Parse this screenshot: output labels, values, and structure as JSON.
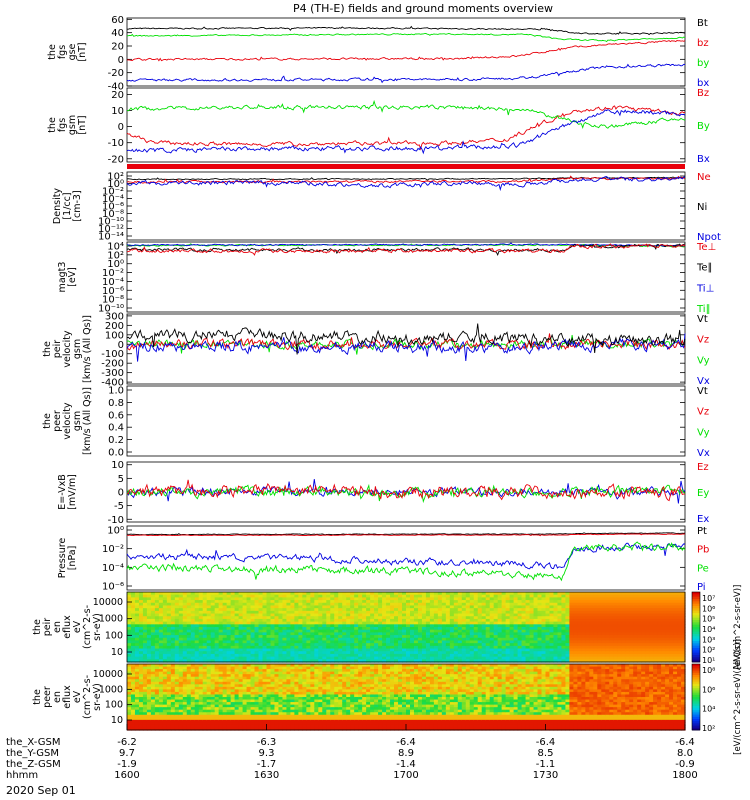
{
  "title": "P4 (TH-E) fields and ground moments overview",
  "date_label": "2020 Sep 01",
  "colors": {
    "black": "#000000",
    "red": "#e8000b",
    "green": "#00e000",
    "blue": "#0000e0"
  },
  "chart_data": [
    {
      "type": "line",
      "id": "fgs-gse",
      "ylabel": [
        "the",
        "fgs",
        "gse",
        "[nT]"
      ],
      "ylim": [
        -40,
        62
      ],
      "ticks": [
        60,
        40,
        20,
        0,
        -20,
        -40
      ],
      "legend": [
        "Bt",
        "bz",
        "by",
        "bx"
      ],
      "series": [
        {
          "name": "Bt",
          "color": "black",
          "levels": [
            [
              0,
              46
            ],
            [
              0.4,
              47
            ],
            [
              0.75,
              45
            ],
            [
              0.8,
              40
            ],
            [
              0.85,
              38
            ],
            [
              1,
              40
            ]
          ],
          "noise": 0.8
        },
        {
          "name": "bz",
          "color": "red",
          "levels": [
            [
              0,
              0
            ],
            [
              0.6,
              1
            ],
            [
              0.7,
              5
            ],
            [
              0.76,
              13
            ],
            [
              0.8,
              18
            ],
            [
              0.86,
              22
            ],
            [
              1,
              28
            ]
          ],
          "noise": 1.2
        },
        {
          "name": "by",
          "color": "green",
          "levels": [
            [
              0,
              35
            ],
            [
              0.55,
              38
            ],
            [
              0.72,
              37
            ],
            [
              0.78,
              30
            ],
            [
              0.85,
              28
            ],
            [
              1,
              33
            ]
          ],
          "noise": 0.8
        },
        {
          "name": "bx",
          "color": "blue",
          "levels": [
            [
              0,
              -31
            ],
            [
              0.6,
              -30
            ],
            [
              0.72,
              -28
            ],
            [
              0.77,
              -20
            ],
            [
              0.85,
              -12
            ],
            [
              1,
              -8
            ]
          ],
          "noise": 1.5
        }
      ]
    },
    {
      "type": "line",
      "id": "fgs-gsm",
      "ylabel": [
        "the",
        "fgs",
        "gsm",
        "[nT]"
      ],
      "ylim": [
        -22,
        24
      ],
      "ticks": [
        20,
        10,
        0,
        -10,
        -20
      ],
      "legend": [
        "Bz",
        "By",
        "Bx"
      ],
      "series": [
        {
          "name": "Bz",
          "color": "red",
          "levels": [
            [
              0,
              -5
            ],
            [
              0.05,
              -10
            ],
            [
              0.2,
              -11
            ],
            [
              0.6,
              -10
            ],
            [
              0.68,
              -8
            ],
            [
              0.73,
              0
            ],
            [
              0.8,
              10
            ],
            [
              0.88,
              12
            ],
            [
              1,
              8
            ]
          ],
          "noise": 1.0
        },
        {
          "name": "By",
          "color": "green",
          "levels": [
            [
              0,
              11
            ],
            [
              0.2,
              12
            ],
            [
              0.6,
              12
            ],
            [
              0.72,
              10
            ],
            [
              0.8,
              3
            ],
            [
              0.86,
              0
            ],
            [
              1,
              5
            ]
          ],
          "noise": 1.0
        },
        {
          "name": "Bx",
          "color": "blue",
          "levels": [
            [
              0,
              -15
            ],
            [
              0.2,
              -14
            ],
            [
              0.6,
              -13
            ],
            [
              0.7,
              -12
            ],
            [
              0.78,
              0
            ],
            [
              0.86,
              10
            ],
            [
              1,
              8
            ]
          ],
          "noise": 1.2
        }
      ]
    },
    {
      "type": "line",
      "id": "density",
      "log": true,
      "ylabel": [
        "Density",
        "[1/cc]",
        "[cm-3]"
      ],
      "ylim": [
        -14,
        2
      ],
      "ticks": [
        "10²",
        "10⁰",
        "10⁻²",
        "10⁻⁴",
        "10⁻⁶",
        "10⁻⁸",
        "10⁻¹⁰",
        "10⁻¹²",
        "10⁻¹⁴"
      ],
      "legend": [
        "Ne",
        "Ni",
        "Npot"
      ],
      "series": [
        {
          "name": "Ni",
          "color": "black",
          "levels": [
            [
              0,
              0.3
            ],
            [
              0.7,
              0.4
            ],
            [
              0.8,
              0.6
            ],
            [
              1,
              0.7
            ]
          ],
          "noise": 0.1
        },
        {
          "name": "Ne",
          "color": "red",
          "levels": [
            [
              0,
              -0.3
            ],
            [
              0.7,
              -0.2
            ],
            [
              0.8,
              0.4
            ],
            [
              1,
              0.5
            ]
          ],
          "noise": 0.2
        },
        {
          "name": "Npot",
          "color": "blue",
          "levels": [
            [
              0,
              -0.6
            ],
            [
              0.3,
              -0.5
            ],
            [
              0.45,
              -1.2
            ],
            [
              0.6,
              -0.6
            ],
            [
              0.7,
              -0.9
            ],
            [
              0.8,
              0.2
            ],
            [
              1,
              0.4
            ]
          ],
          "noise": 0.4
        }
      ]
    },
    {
      "type": "line",
      "id": "moms-temp",
      "log": true,
      "ylabel": [
        "magt3",
        "[eV]"
      ],
      "ylim": [
        -10,
        4
      ],
      "ticks": [
        "10⁴",
        "10²",
        "10⁰",
        "10⁻²",
        "10⁻⁴",
        "10⁻⁶",
        "10⁻⁸",
        "10⁻¹⁰"
      ],
      "legend": [
        "Te⊥",
        "Te∥",
        "Ti⊥",
        "Ti∥"
      ],
      "series": [
        {
          "name": "Ti∥",
          "color": "green",
          "levels": [
            [
              0,
              3.3
            ],
            [
              0.8,
              3.4
            ],
            [
              1,
              3.1
            ]
          ],
          "noise": 0.1
        },
        {
          "name": "Ti⊥",
          "color": "blue",
          "levels": [
            [
              0,
              3.4
            ],
            [
              0.8,
              3.5
            ],
            [
              1,
              3.2
            ]
          ],
          "noise": 0.1
        },
        {
          "name": "Te∥",
          "color": "black",
          "levels": [
            [
              0,
              2.5
            ],
            [
              0.78,
              2.4
            ],
            [
              0.8,
              3.2
            ],
            [
              1,
              3.3
            ]
          ],
          "noise": 0.25
        },
        {
          "name": "Te⊥",
          "color": "red",
          "levels": [
            [
              0,
              2.3
            ],
            [
              0.78,
              2.2
            ],
            [
              0.8,
              3.1
            ],
            [
              1,
              3.2
            ]
          ],
          "noise": 0.3
        }
      ]
    },
    {
      "type": "line",
      "id": "peir-velocity",
      "ylabel": [
        "the",
        "peir",
        "velocity",
        "gsm",
        "[km/s (All Qs)]"
      ],
      "ylim": [
        -420,
        320
      ],
      "ticks": [
        300,
        200,
        100,
        0,
        -100,
        -200,
        -300,
        -400
      ],
      "legend": [
        "Vt",
        "Vz",
        "Vy",
        "Vx"
      ],
      "series": [
        {
          "name": "Vy",
          "color": "green",
          "levels": [
            [
              0,
              0
            ],
            [
              1,
              0
            ]
          ],
          "noise": 35
        },
        {
          "name": "Vz",
          "color": "red",
          "levels": [
            [
              0,
              0
            ],
            [
              1,
              0
            ]
          ],
          "noise": 40
        },
        {
          "name": "Vx",
          "color": "blue",
          "levels": [
            [
              0,
              -20
            ],
            [
              0.7,
              -40
            ],
            [
              0.8,
              -10
            ],
            [
              1,
              0
            ]
          ],
          "noise": 45
        },
        {
          "name": "Vt",
          "color": "black",
          "levels": [
            [
              0,
              80
            ],
            [
              0.2,
              110
            ],
            [
              0.5,
              70
            ],
            [
              0.8,
              60
            ],
            [
              1,
              40
            ]
          ],
          "noise": 50
        }
      ]
    },
    {
      "type": "empty",
      "id": "peer-velocity",
      "ylabel": [
        "the",
        "peer",
        "velocity",
        "gsm",
        "[km/s (All Qs)]"
      ],
      "ylim": [
        0,
        1
      ],
      "ticks": [
        "1.0",
        "0.8",
        "0.6",
        "0.4",
        "0.2",
        "0.0"
      ],
      "legend": [
        "Vt",
        "Vz",
        "Vy",
        "Vx"
      ]
    },
    {
      "type": "line",
      "id": "efield",
      "ylabel": [
        "E=-VxB",
        "[mV/m]"
      ],
      "ylim": [
        -11,
        11
      ],
      "ticks": [
        10,
        5,
        0,
        -5,
        -10
      ],
      "legend": [
        "Ez",
        "Ey",
        "Ex"
      ],
      "series": [
        {
          "name": "Ex",
          "color": "blue",
          "levels": [
            [
              0,
              0
            ],
            [
              1,
              0
            ]
          ],
          "noise": 1.2
        },
        {
          "name": "Ey",
          "color": "green",
          "levels": [
            [
              0,
              0
            ],
            [
              1,
              0
            ]
          ],
          "noise": 1.4
        },
        {
          "name": "Ez",
          "color": "red",
          "levels": [
            [
              0,
              0
            ],
            [
              0.4,
              1
            ],
            [
              0.5,
              0
            ],
            [
              1,
              0
            ]
          ],
          "noise": 1.8
        }
      ]
    },
    {
      "type": "line",
      "id": "pressure",
      "log": true,
      "ylabel": [
        "Pressure",
        "[nPa]"
      ],
      "ylim": [
        -6,
        1.2
      ],
      "ticks": [
        "10⁰",
        "10⁻²",
        "10⁻⁴",
        "10⁻⁶"
      ],
      "legend": [
        "Pt",
        "Pb",
        "Pe",
        "Pi"
      ],
      "series": [
        {
          "name": "Pt",
          "color": "black",
          "levels": [
            [
              0,
              0.25
            ],
            [
              0.78,
              0.3
            ],
            [
              0.82,
              0.35
            ],
            [
              1,
              0.4
            ]
          ],
          "noise": 0.03
        },
        {
          "name": "Pb",
          "color": "red",
          "levels": [
            [
              0,
              0.15
            ],
            [
              0.78,
              0.2
            ],
            [
              0.82,
              0.25
            ],
            [
              1,
              0.3
            ]
          ],
          "noise": 0.03
        },
        {
          "name": "Pi",
          "color": "blue",
          "levels": [
            [
              0,
              -2.2
            ],
            [
              0.3,
              -2.4
            ],
            [
              0.5,
              -2.8
            ],
            [
              0.7,
              -3.0
            ],
            [
              0.78,
              -3.4
            ],
            [
              0.8,
              -1.3
            ],
            [
              1,
              -1.0
            ]
          ],
          "noise": 0.3
        },
        {
          "name": "Pe",
          "color": "green",
          "levels": [
            [
              0,
              -3.5
            ],
            [
              0.3,
              -3.7
            ],
            [
              0.5,
              -3.9
            ],
            [
              0.7,
              -4.2
            ],
            [
              0.78,
              -4.6
            ],
            [
              0.8,
              -1.4
            ],
            [
              1,
              -1.1
            ]
          ],
          "noise": 0.35
        }
      ]
    },
    {
      "type": "heatmap",
      "id": "peir-eflux",
      "ylabel": [
        "the",
        "peir",
        "en",
        "eflux",
        "eV",
        "(cm^2-s-",
        "sr-eV)"
      ],
      "ticks": [
        10000,
        1000,
        100,
        10
      ],
      "colorbar": {
        "label": "[eV/(cm^2-s-sr-eV)]",
        "ticks": [
          "10⁷",
          "10⁶",
          "10⁵",
          "10⁴",
          "10³",
          "10²",
          "10¹"
        ]
      }
    },
    {
      "type": "heatmap",
      "id": "peer-eflux",
      "ylabel": [
        "the",
        "peer",
        "en",
        "eflux",
        "eV",
        "(cm^2-s-",
        "sr-eV)"
      ],
      "ticks": [
        10000,
        1000,
        100,
        10
      ],
      "colorbar": {
        "label": "[eV/(cm^2-s-sr-eV)(All Qs)]",
        "ticks": [
          "10⁸",
          "10⁶",
          "10⁴",
          "10²"
        ]
      }
    }
  ],
  "x_axis": {
    "rows": [
      {
        "label": "the_X-GSM",
        "values": [
          "-6.2",
          "-6.3",
          "-6.4",
          "-6.4",
          "-6.4"
        ]
      },
      {
        "label": "the_Y-GSM",
        "values": [
          "9.7",
          "9.3",
          "8.9",
          "8.5",
          "8.0"
        ]
      },
      {
        "label": "the_Z-GSM",
        "values": [
          "-1.9",
          "-1.7",
          "-1.4",
          "-1.1",
          "-0.9"
        ]
      },
      {
        "label": "hhmm",
        "values": [
          "1600",
          "1630",
          "1700",
          "1730",
          "1800"
        ]
      }
    ]
  }
}
